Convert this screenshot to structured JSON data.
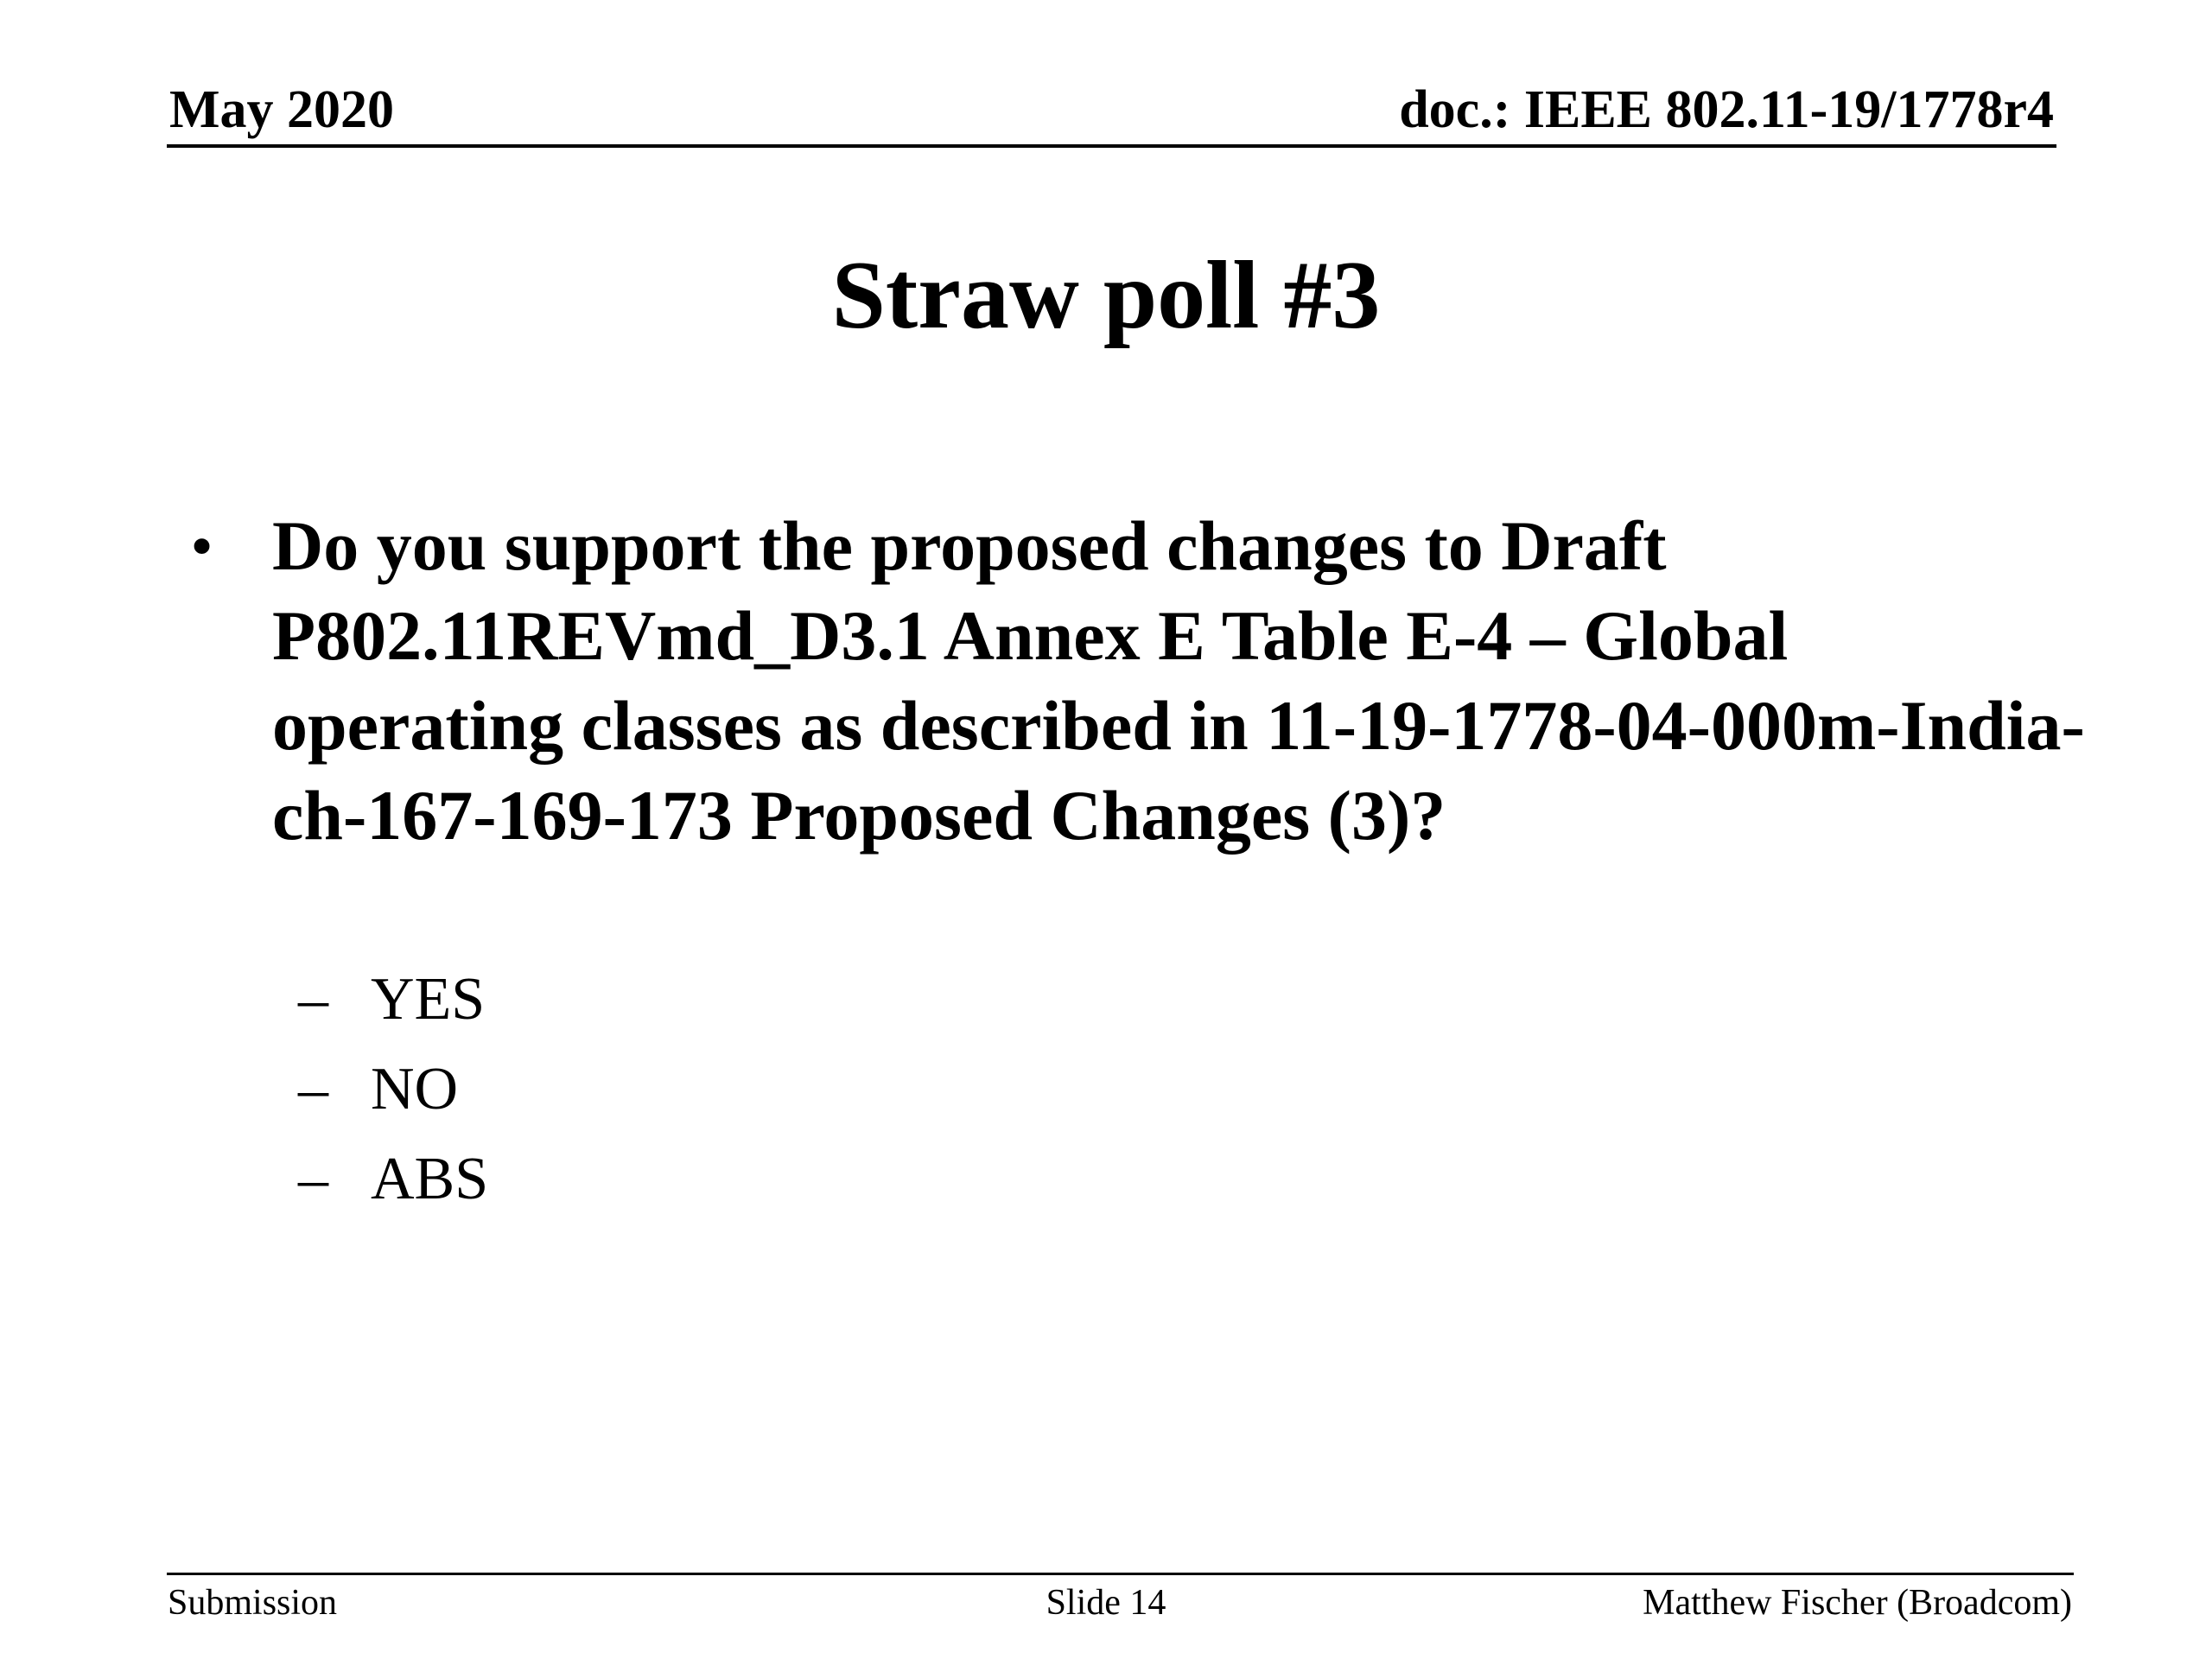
{
  "header": {
    "date": "May 2020",
    "doc_id": "doc.: IEEE 802.11-19/1778r4"
  },
  "slide": {
    "title": "Straw poll #3",
    "bullet": "•",
    "question": "Do you support the proposed changes to Draft P802.11REVmd_D3.1 Annex E Table E-4 – Global operating classes as described in 11-19-1778-04-000m-India-ch-167-169-173 Proposed Changes (3)?",
    "options": [
      {
        "dash": "–",
        "label": "YES"
      },
      {
        "dash": "–",
        "label": "NO"
      },
      {
        "dash": "–",
        "label": "ABS"
      }
    ]
  },
  "footer": {
    "left": "Submission",
    "center": "Slide 14",
    "right": "Matthew Fischer (Broadcom)"
  }
}
